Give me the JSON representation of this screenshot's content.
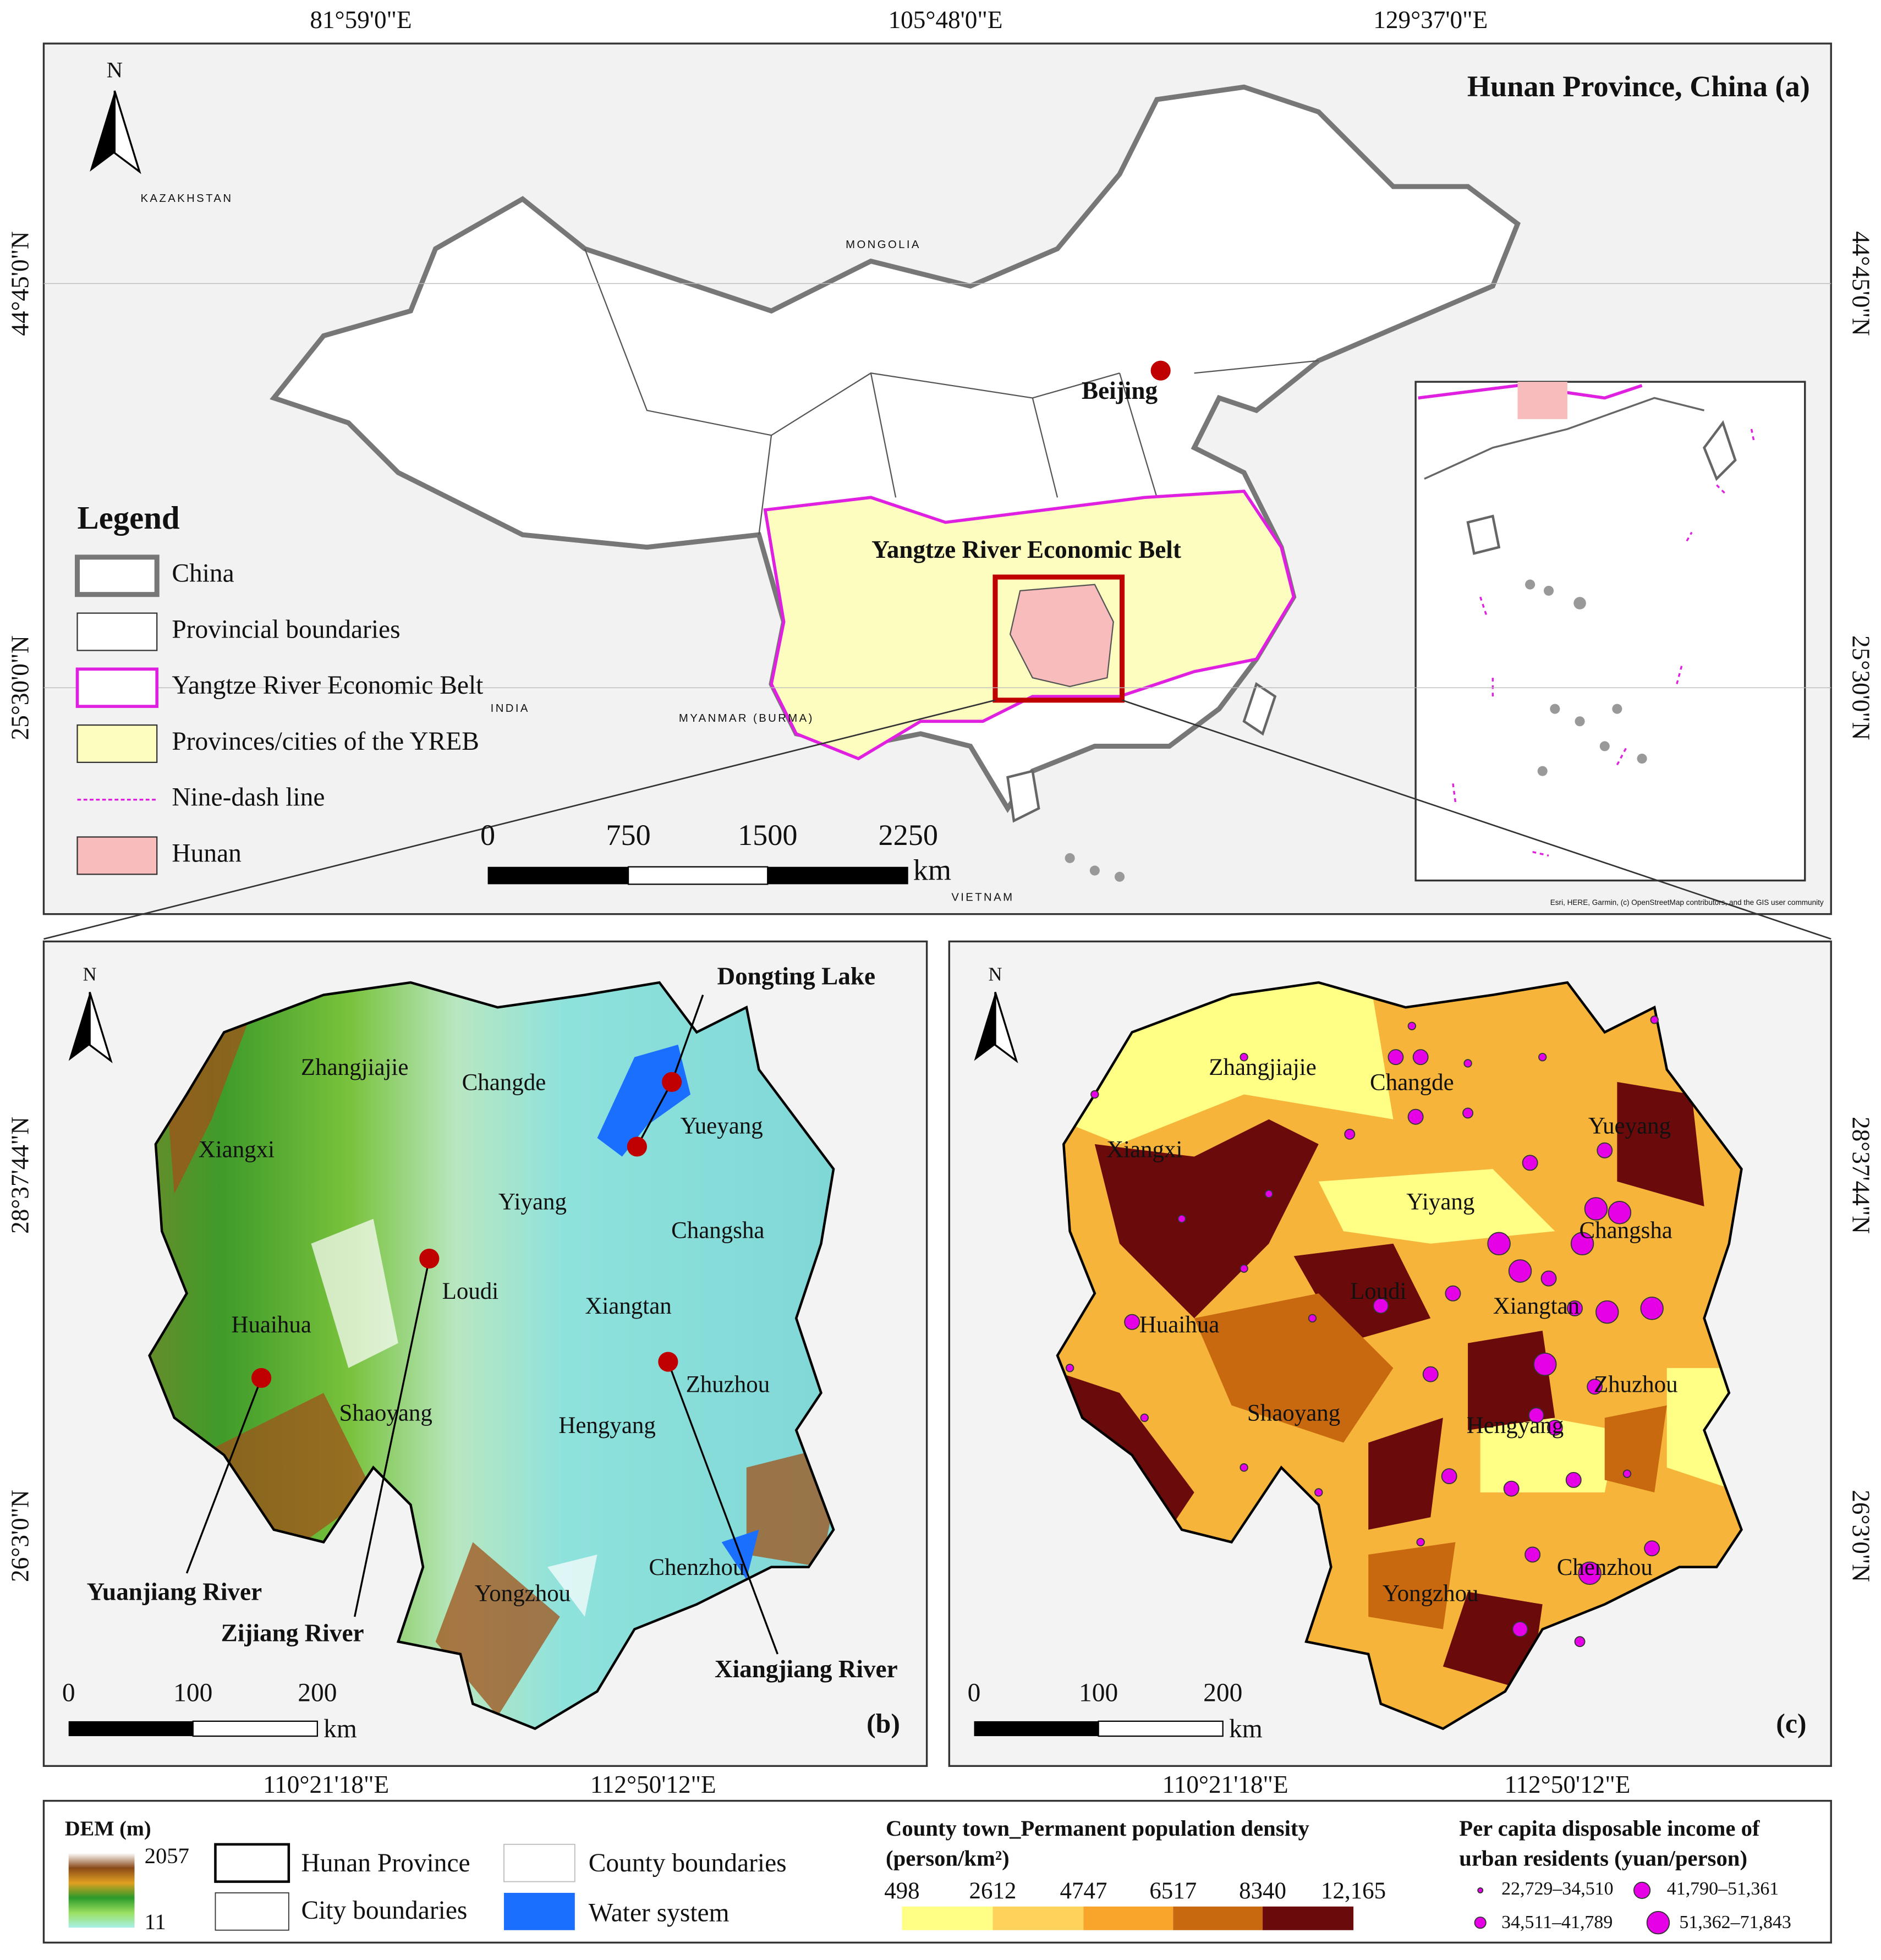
{
  "panel_a": {
    "title": "Hunan Province, China (a)",
    "north": "N",
    "top_coords": [
      "81°59'0\"E",
      "105°48'0\"E",
      "129°37'0\"E"
    ],
    "side_coords": [
      "44°45'0\"N",
      "25°30'0\"N"
    ],
    "basemap_labels": [
      "KAZAKHSTAN",
      "MONGOLIA",
      "INDIA",
      "MYANMAR (BURMA)",
      "VIETNAM"
    ],
    "capital": "Beijing",
    "belt_label": "Yangtze River Economic Belt",
    "legend_title": "Legend",
    "legend_items": [
      "China",
      "Provincial boundaries",
      "Yangtze River Economic Belt",
      "Provinces/cities of the YREB",
      "Nine-dash line",
      "Hunan"
    ],
    "scale_labels": [
      "0",
      "750",
      "1500",
      "2250"
    ],
    "scale_unit": "km",
    "attribution": "Esri, HERE, Garmin, (c) OpenStreetMap contributors, and the GIS user community"
  },
  "hunan_cities": [
    "Zhangjiajie",
    "Changde",
    "Xiangxi",
    "Yueyang",
    "Yiyang",
    "Changsha",
    "Loudi",
    "Xiangtan",
    "Huaihua",
    "Zhuzhou",
    "Shaoyang",
    "Hengyang",
    "Yongzhou",
    "Chenzhou"
  ],
  "bottom_coords": [
    "110°21'18\"E",
    "112°50'12\"E"
  ],
  "hunan_side_coords": [
    "28°37'44\"N",
    "26°3'0\"N"
  ],
  "panel_b": {
    "label": "(b)",
    "north": "N",
    "features": [
      "Dongting Lake",
      "Yuanjiang River",
      "Zijiang River",
      "Xiangjiang River"
    ],
    "scale_labels": [
      "0",
      "100",
      "200"
    ],
    "scale_unit": "km"
  },
  "panel_c": {
    "label": "(c)",
    "north": "N",
    "scale_labels": [
      "0",
      "100",
      "200"
    ],
    "scale_unit": "km"
  },
  "legend": {
    "dem_title": "DEM (m)",
    "dem_max": "2057",
    "dem_min": "11",
    "boundaries": [
      "Hunan Province",
      "City boundaries",
      "County boundaries",
      "Water system"
    ],
    "density_title": "County town_Permanent population density",
    "density_unit": "(person/km²)",
    "density_breaks": [
      "498",
      "2612",
      "4747",
      "6517",
      "8340",
      "12,165"
    ],
    "income_title": [
      "Per capita disposable income of",
      "urban residents (yuan/person)"
    ],
    "income_classes": [
      "22,729–34,510",
      "34,511–41,789",
      "41,790–51,361",
      "51,362–71,843"
    ]
  }
}
